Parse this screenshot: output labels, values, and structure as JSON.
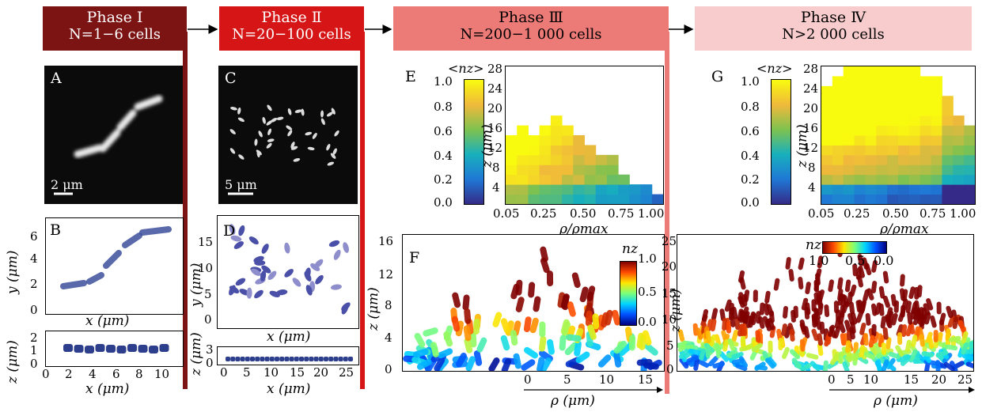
{
  "phases": [
    {
      "title": "Phase Ⅰ",
      "subtitle": "N=1−6 cells",
      "color": "#7d1414",
      "textColor": "#ffffff"
    },
    {
      "title": "Phase Ⅱ",
      "subtitle": "N=20−100 cells",
      "color": "#d61616",
      "textColor": "#ffffff"
    },
    {
      "title": "Phase Ⅲ",
      "subtitle": "N=200−1 000 cells",
      "color": "#ec7a76",
      "textColor": "#000000"
    },
    {
      "title": "Phase Ⅳ",
      "subtitle": "N>2 000 cells",
      "color": "#f8cccc",
      "textColor": "#000000"
    }
  ],
  "panels": {
    "A": {
      "letter": "A",
      "scale": "2 μm"
    },
    "C": {
      "letter": "C",
      "scale": "5 μm"
    },
    "B": {
      "letter": "B",
      "ylabel": "y (μm)",
      "xlabel": "x (μm)",
      "yticks": [
        "0",
        "2",
        "4",
        "6"
      ],
      "zlabel": "z (μm)",
      "zticks": [
        "0",
        "1",
        "2"
      ],
      "xticks": [
        "0",
        "2",
        "4",
        "6",
        "8",
        "10"
      ],
      "xlabel2": "x (μm)"
    },
    "D": {
      "letter": "D",
      "ylabel": "y (μm)",
      "xlabel": "x (μm)",
      "yticks": [
        "0",
        "5",
        "10",
        "15"
      ],
      "zlabel": "z (μm)",
      "zticks": [
        "0",
        "3"
      ],
      "xticks": [
        "0",
        "5",
        "10",
        "15",
        "20",
        "25"
      ],
      "xlabel2": "x (μm)"
    },
    "E": {
      "letter": "E",
      "cbar_label": "<nz>",
      "cbar_ticks": [
        "1.0",
        "0.8",
        "0.6",
        "0.4",
        "0.2",
        "0.0"
      ],
      "zlabel": "z (μm)",
      "zticks": [
        "28",
        "24",
        "20",
        "16",
        "12",
        "8",
        "4"
      ],
      "xticks": [
        "0.05",
        "0.25",
        "0.50",
        "0.75",
        "1.00"
      ],
      "xlabel": "ρ/ρmax"
    },
    "G": {
      "letter": "G",
      "cbar_label": "<nz>",
      "cbar_ticks": [
        "1.0",
        "0.8",
        "0.6",
        "0.4",
        "0.2",
        "0.0"
      ],
      "zlabel": "z (μm)",
      "zticks": [
        "28",
        "24",
        "20",
        "16",
        "12",
        "8",
        "4"
      ],
      "xticks": [
        "0.05",
        "0.25",
        "0.50",
        "0.75",
        "1.00"
      ],
      "xlabel": "ρ/ρmax"
    },
    "F": {
      "letter": "F",
      "cbar_label": "nz",
      "cbar_ticks": [
        "1.0",
        "0.5",
        "0.0"
      ],
      "zlabel": "z (μm)",
      "zticks": [
        "16",
        "12",
        "8",
        "4",
        "0"
      ],
      "xticks": [
        "0",
        "5",
        "10",
        "15"
      ],
      "xlabel": "ρ (μm)"
    },
    "H": {
      "cbar_label": "nz",
      "cbar_ticks": [
        "1.0",
        "0.5",
        "0.0"
      ],
      "zlabel": "z (μm)",
      "zticks": [
        "25",
        "20",
        "15",
        "10",
        "5",
        "0"
      ],
      "xticks": [
        "0",
        "5",
        "10",
        "15",
        "20",
        "25"
      ],
      "xlabel": "ρ (μm)"
    }
  },
  "chart_data": [
    {
      "type": "heatmap",
      "panel": "E",
      "x_range": [
        0.05,
        1.0
      ],
      "y_range": [
        0,
        28
      ],
      "colormap": "parula",
      "value_range": [
        0,
        1
      ],
      "profile_max_z": [
        13,
        15,
        14,
        15,
        17,
        15,
        13,
        12,
        10,
        9,
        6,
        4,
        3,
        2
      ]
    },
    {
      "type": "heatmap",
      "panel": "G",
      "x_range": [
        0.05,
        1.0
      ],
      "y_range": [
        0,
        28
      ],
      "colormap": "parula",
      "value_range": [
        0,
        1
      ],
      "profile_max_z": [
        24,
        26,
        27,
        27,
        27,
        27,
        28,
        27,
        27,
        26,
        25,
        22,
        18,
        16
      ]
    },
    {
      "type": "scatter",
      "panel": "F",
      "x_range": [
        0,
        15
      ],
      "y_range": [
        0,
        16
      ],
      "colormap": "jet",
      "value_range": [
        0,
        1
      ]
    },
    {
      "type": "scatter",
      "panel": "H",
      "x_range": [
        0,
        25
      ],
      "y_range": [
        0,
        25
      ],
      "colormap": "jet",
      "value_range": [
        0,
        1
      ]
    }
  ]
}
